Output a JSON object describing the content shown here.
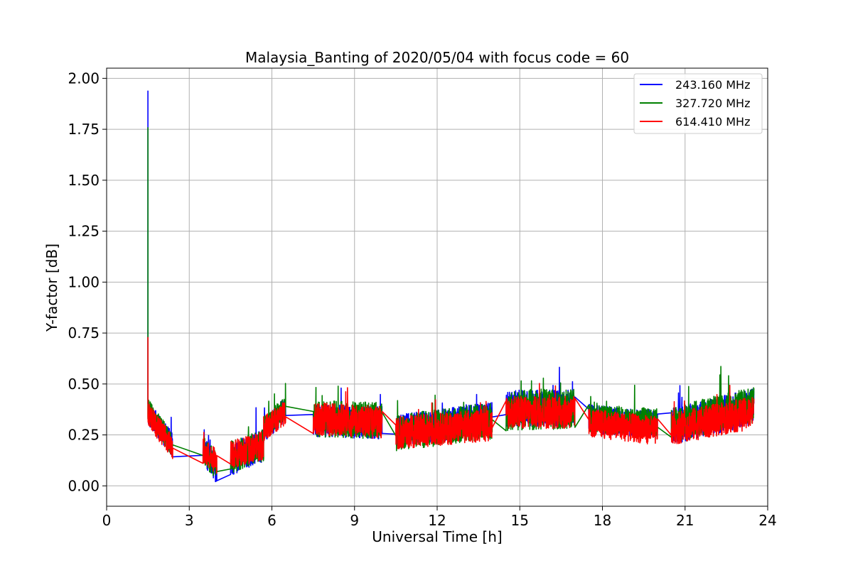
{
  "chart_data": {
    "type": "line",
    "title": "Malaysia_Banting of 2020/05/04 with focus code = 60",
    "xlabel": "Universal Time [h]",
    "ylabel": "Y-factor [dB]",
    "xlim": [
      0,
      24
    ],
    "ylim": [
      -0.1,
      2.05
    ],
    "xticks": [
      0,
      3,
      6,
      9,
      12,
      15,
      18,
      21,
      24
    ],
    "xtick_labels": [
      "0",
      "3",
      "6",
      "9",
      "12",
      "15",
      "18",
      "21",
      "24"
    ],
    "yticks": [
      0.0,
      0.25,
      0.5,
      0.75,
      1.0,
      1.25,
      1.5,
      1.75,
      2.0
    ],
    "ytick_labels": [
      "0.00",
      "0.25",
      "0.50",
      "0.75",
      "1.00",
      "1.25",
      "1.50",
      "1.75",
      "2.00"
    ],
    "grid": true,
    "legend_position": "top-right",
    "series": [
      {
        "name": "243.160 MHz",
        "color": "#0000ff",
        "spike": {
          "x": 1.5,
          "y": 1.94
        },
        "segments": [
          {
            "x0": 1.5,
            "x1": 2.4,
            "y0": 0.36,
            "y1": 0.2,
            "amp": 0.06
          },
          {
            "x0": 3.5,
            "x1": 4.0,
            "y0": 0.18,
            "y1": 0.08,
            "amp": 0.07
          },
          {
            "x0": 4.5,
            "x1": 5.7,
            "y0": 0.13,
            "y1": 0.2,
            "amp": 0.08
          },
          {
            "x0": 5.7,
            "x1": 6.5,
            "y0": 0.27,
            "y1": 0.38,
            "amp": 0.06
          },
          {
            "x0": 7.5,
            "x1": 10.0,
            "y0": 0.32,
            "y1": 0.31,
            "amp": 0.08
          },
          {
            "x0": 10.5,
            "x1": 14.0,
            "y0": 0.27,
            "y1": 0.33,
            "amp": 0.08
          },
          {
            "x0": 14.5,
            "x1": 17.0,
            "y0": 0.38,
            "y1": 0.38,
            "amp": 0.09
          },
          {
            "x0": 17.5,
            "x1": 20.0,
            "y0": 0.33,
            "y1": 0.3,
            "amp": 0.07
          },
          {
            "x0": 20.5,
            "x1": 23.5,
            "y0": 0.29,
            "y1": 0.39,
            "amp": 0.09
          }
        ]
      },
      {
        "name": "327.720 MHz",
        "color": "#008000",
        "spike": {
          "x": 1.5,
          "y": 1.76
        },
        "segments": [
          {
            "x0": 1.5,
            "x1": 2.4,
            "y0": 0.37,
            "y1": 0.2,
            "amp": 0.06
          },
          {
            "x0": 3.5,
            "x1": 4.0,
            "y0": 0.18,
            "y1": 0.09,
            "amp": 0.07
          },
          {
            "x0": 4.5,
            "x1": 5.7,
            "y0": 0.14,
            "y1": 0.2,
            "amp": 0.08
          },
          {
            "x0": 5.7,
            "x1": 6.5,
            "y0": 0.28,
            "y1": 0.38,
            "amp": 0.06
          },
          {
            "x0": 7.5,
            "x1": 10.0,
            "y0": 0.33,
            "y1": 0.32,
            "amp": 0.09
          },
          {
            "x0": 10.5,
            "x1": 14.0,
            "y0": 0.26,
            "y1": 0.32,
            "amp": 0.09
          },
          {
            "x0": 14.5,
            "x1": 17.0,
            "y0": 0.37,
            "y1": 0.38,
            "amp": 0.1
          },
          {
            "x0": 17.5,
            "x1": 20.0,
            "y0": 0.33,
            "y1": 0.31,
            "amp": 0.07
          },
          {
            "x0": 20.5,
            "x1": 23.5,
            "y0": 0.3,
            "y1": 0.4,
            "amp": 0.09
          }
        ]
      },
      {
        "name": "614.410 MHz",
        "color": "#ff0000",
        "spike": {
          "x": 1.5,
          "y": 0.73
        },
        "segments": [
          {
            "x0": 1.5,
            "x1": 2.4,
            "y0": 0.35,
            "y1": 0.19,
            "amp": 0.06
          },
          {
            "x0": 3.5,
            "x1": 4.0,
            "y0": 0.17,
            "y1": 0.12,
            "amp": 0.06
          },
          {
            "x0": 4.5,
            "x1": 5.7,
            "y0": 0.15,
            "y1": 0.2,
            "amp": 0.07
          },
          {
            "x0": 5.7,
            "x1": 6.5,
            "y0": 0.28,
            "y1": 0.36,
            "amp": 0.06
          },
          {
            "x0": 7.5,
            "x1": 10.0,
            "y0": 0.33,
            "y1": 0.31,
            "amp": 0.08
          },
          {
            "x0": 10.5,
            "x1": 14.0,
            "y0": 0.26,
            "y1": 0.3,
            "amp": 0.08
          },
          {
            "x0": 14.5,
            "x1": 17.0,
            "y0": 0.36,
            "y1": 0.36,
            "amp": 0.08
          },
          {
            "x0": 17.5,
            "x1": 20.0,
            "y0": 0.31,
            "y1": 0.27,
            "amp": 0.07
          },
          {
            "x0": 20.5,
            "x1": 23.5,
            "y0": 0.28,
            "y1": 0.36,
            "amp": 0.08
          }
        ]
      }
    ]
  }
}
